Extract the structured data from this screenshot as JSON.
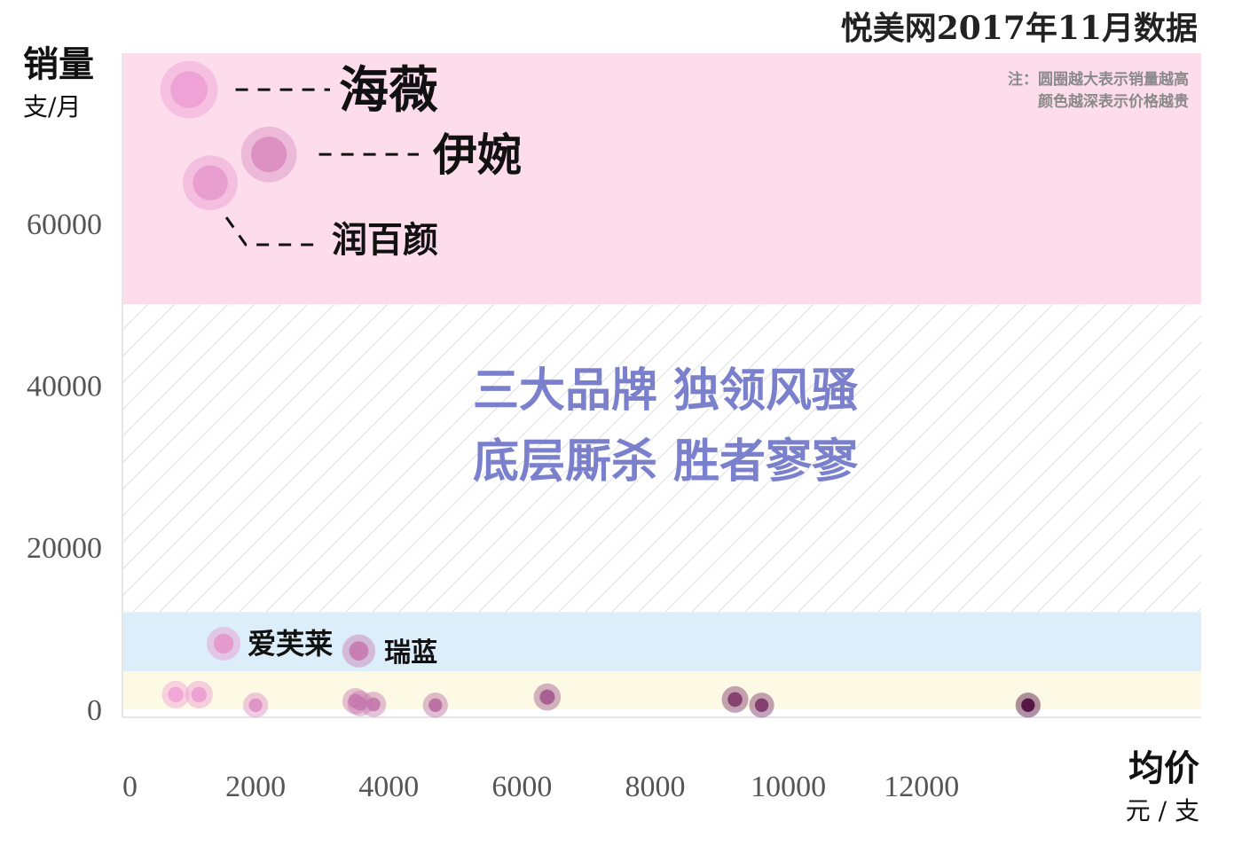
{
  "title": "悦美网2017年11月数据",
  "note": [
    "注：圆圈越大表示销量越高",
    "颜色越深表示价格越贵"
  ],
  "headline": [
    "三大品牌 独领风骚",
    "底层厮杀 胜者寥寥"
  ],
  "colors": {
    "band_top": "#fdddeb",
    "band_mid": "#ddeefb",
    "band_bottom": "#fcf9e4",
    "hatch": "#e8e8e8",
    "headline": "#7a80cc",
    "bubble_light": "#f7a7dc",
    "bubble_dark": "#4d0a3d"
  },
  "chart_data": {
    "type": "scatter",
    "title": "悦美网2017年11月数据",
    "xlabel": "均价",
    "xunit": "元 / 支",
    "ylabel": "销量",
    "yunit": "支/月",
    "xlim": [
      0,
      16200
    ],
    "ylim": [
      -1000,
      81000
    ],
    "xticks": [
      0,
      2000,
      4000,
      6000,
      8000,
      10000,
      12000
    ],
    "yticks": [
      0,
      20000,
      40000,
      60000
    ],
    "bands": [
      {
        "y0": 50000,
        "y1": 81000,
        "color": "#fdddeb"
      },
      {
        "y0": 12000,
        "y1": 50000,
        "color": "hatch"
      },
      {
        "y0": 4700,
        "y1": 12000,
        "color": "#ddeefb"
      },
      {
        "y0": 0,
        "y1": 4700,
        "color": "#fcf9e4"
      }
    ],
    "points": [
      {
        "name": "海薇",
        "x": 1000,
        "y": 76500
      },
      {
        "name": "伊婉",
        "x": 2200,
        "y": 68500
      },
      {
        "name": "润百颜",
        "x": 1320,
        "y": 65000
      },
      {
        "name": "爱芙莱",
        "x": 1520,
        "y": 8100
      },
      {
        "name": "瑞蓝",
        "x": 3550,
        "y": 7200
      },
      {
        "x": 800,
        "y": 1800
      },
      {
        "x": 1150,
        "y": 1800
      },
      {
        "x": 2000,
        "y": 500
      },
      {
        "x": 3500,
        "y": 1000
      },
      {
        "x": 3570,
        "y": 700
      },
      {
        "x": 3770,
        "y": 600
      },
      {
        "x": 4700,
        "y": 500
      },
      {
        "x": 6380,
        "y": 1500
      },
      {
        "x": 9200,
        "y": 1200
      },
      {
        "x": 9600,
        "y": 500
      },
      {
        "x": 13600,
        "y": 500
      }
    ]
  }
}
